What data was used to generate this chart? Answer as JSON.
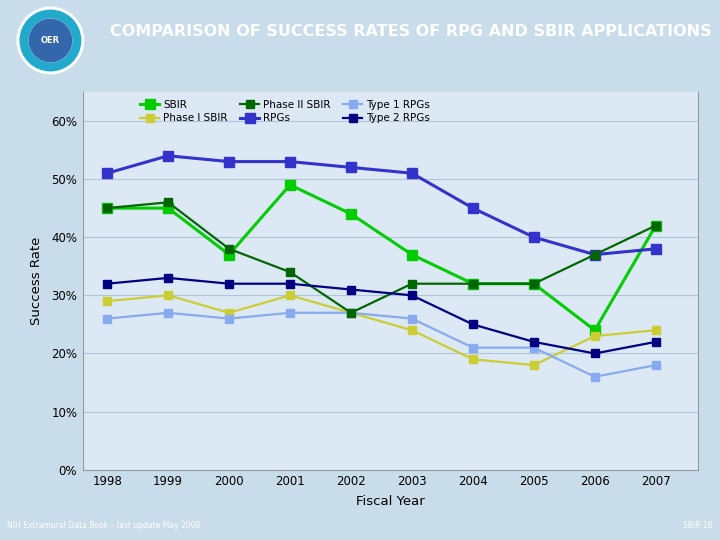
{
  "title": "COMPARISON OF SUCCESS RATES OF RPG AND SBIR APPLICATIONS",
  "xlabel": "Fiscal Year",
  "ylabel": "Success Rate",
  "years": [
    1998,
    1999,
    2000,
    2001,
    2002,
    2003,
    2004,
    2005,
    2006,
    2007
  ],
  "series": {
    "SBIR": {
      "values": [
        45,
        45,
        37,
        49,
        44,
        37,
        32,
        32,
        24,
        42
      ],
      "color": "#00CC00",
      "marker": "s",
      "markersize": 7,
      "linewidth": 2.2,
      "label": "SBIR"
    },
    "RPGs": {
      "values": [
        51,
        54,
        53,
        53,
        52,
        51,
        45,
        40,
        37,
        38
      ],
      "color": "#3333CC",
      "marker": "s",
      "markersize": 7,
      "linewidth": 2.2,
      "label": "RPGs"
    },
    "Phase I SBIR": {
      "values": [
        29,
        30,
        27,
        30,
        27,
        24,
        19,
        18,
        23,
        24
      ],
      "color": "#CCCC33",
      "marker": "s",
      "markersize": 6,
      "linewidth": 1.6,
      "label": "Phase I SBIR"
    },
    "Type 1 RPGs": {
      "values": [
        26,
        27,
        26,
        27,
        27,
        26,
        21,
        21,
        16,
        18
      ],
      "color": "#88AAEE",
      "marker": "s",
      "markersize": 6,
      "linewidth": 1.6,
      "label": "Type 1 RPGs"
    },
    "Phase II SBIR": {
      "values": [
        45,
        46,
        38,
        34,
        27,
        32,
        32,
        32,
        37,
        42
      ],
      "color": "#006600",
      "marker": "s",
      "markersize": 6,
      "linewidth": 1.6,
      "label": "Phase II SBIR"
    },
    "Type 2 RPGs": {
      "values": [
        32,
        33,
        32,
        32,
        31,
        30,
        25,
        22,
        20,
        22
      ],
      "color": "#000080",
      "marker": "s",
      "markersize": 6,
      "linewidth": 1.6,
      "label": "Type 2 RPGs"
    }
  },
  "legend_order": [
    "SBIR",
    "RPGs",
    "Phase I SBIR",
    "Type 1 RPGs",
    "Phase II SBIR",
    "Type 2 RPGs"
  ],
  "ylim": [
    0,
    65
  ],
  "yticks": [
    0,
    10,
    20,
    30,
    40,
    50,
    60
  ],
  "ytick_labels": [
    "0%",
    "10%",
    "20%",
    "30%",
    "40%",
    "50%",
    "60%"
  ],
  "bg_color_outer": "#c8dcea",
  "bg_color_plot": "#dce9f5",
  "title_bar_color": "#6699bb",
  "title_color": "#ffffff",
  "grid_color": "#b0c4d8",
  "footer_color": "#6699bb",
  "footer_left": "NIH Extramural Data Book – last update May 2008",
  "footer_right": "SBIR 18"
}
